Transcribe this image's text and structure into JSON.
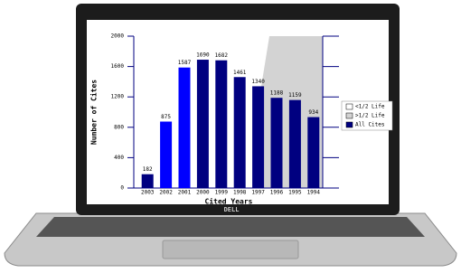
{
  "chart_data": {
    "type": "bar",
    "x_label": "Cited Years",
    "y_label": "Number of Cites",
    "categories": [
      "2003",
      "2002",
      "2001",
      "2000",
      "1999",
      "1998",
      "1997",
      "1996",
      "1995",
      "1994"
    ],
    "values": [
      182,
      875,
      1587,
      1690,
      1682,
      1461,
      1340,
      1188,
      1159,
      934
    ],
    "colors": [
      "#000080",
      "#0000ff",
      "#0000ff",
      "#000080",
      "#000080",
      "#000080",
      "#000080",
      "#000080",
      "#000080",
      "#000080"
    ],
    "ylim": [
      0,
      2000
    ],
    "yticks": [
      0,
      400,
      800,
      1200,
      1600,
      2000
    ],
    "legend": [
      {
        "name": "<1/2 Life",
        "color": "#ffffff"
      },
      {
        "name": ">1/2 Life",
        "color": "#d3d3d3"
      },
      {
        "name": "All Cites",
        "color": "#000080"
      }
    ]
  }
}
